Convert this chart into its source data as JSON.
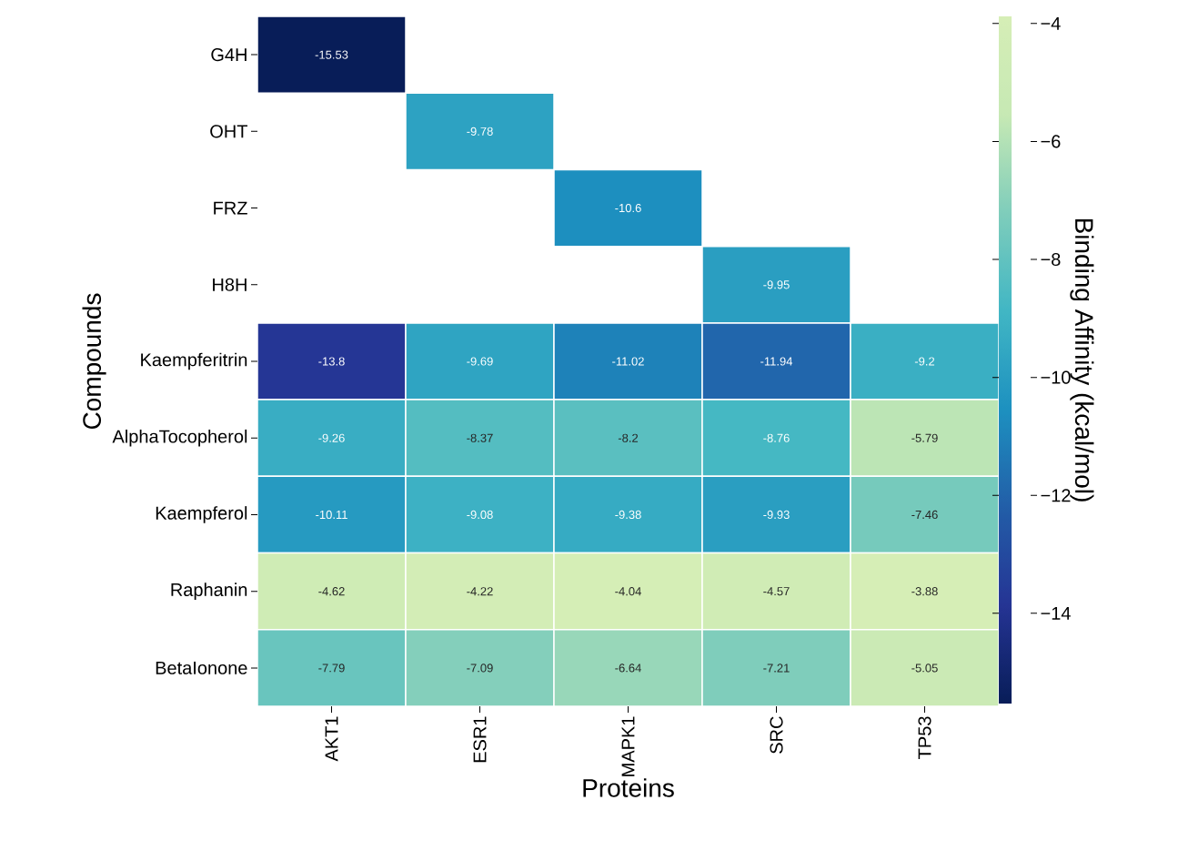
{
  "chart_data": {
    "type": "heatmap",
    "xlabel": "Proteins",
    "ylabel": "Compounds",
    "clabel": "Binding Affinity (kcal/mol)",
    "categories": [
      "AKT1",
      "ESR1",
      "MAPK1",
      "SRC",
      "TP53"
    ],
    "y_categories": [
      "G4H",
      "OHT",
      "FRZ",
      "H8H",
      "Kaempferitrin",
      "AlphaTocopherol",
      "Kaempferol",
      "Raphanin",
      "BetaIonone"
    ],
    "cells": [
      [
        -15.53,
        null,
        null,
        null,
        null
      ],
      [
        null,
        -9.78,
        null,
        null,
        null
      ],
      [
        null,
        null,
        -10.6,
        null,
        null
      ],
      [
        null,
        null,
        null,
        -9.95,
        null
      ],
      [
        -13.8,
        -9.69,
        -11.02,
        -11.94,
        -9.2
      ],
      [
        -9.26,
        -8.37,
        -8.2,
        -8.76,
        -5.79
      ],
      [
        -10.11,
        -9.08,
        -9.38,
        -9.93,
        -7.46
      ],
      [
        -4.62,
        -4.22,
        -4.04,
        -4.57,
        -3.88
      ],
      [
        -7.79,
        -7.09,
        -6.64,
        -7.21,
        -5.05
      ]
    ],
    "clim": [
      -15.53,
      -3.88
    ],
    "cticks": [
      {
        "value": -4,
        "label": "−4"
      },
      {
        "value": -6,
        "label": "−6"
      },
      {
        "value": -8,
        "label": "−8"
      },
      {
        "value": -10,
        "label": "−10"
      },
      {
        "value": -12,
        "label": "−12"
      },
      {
        "value": -14,
        "label": "−14"
      }
    ],
    "data_labels": true,
    "grid": false
  }
}
